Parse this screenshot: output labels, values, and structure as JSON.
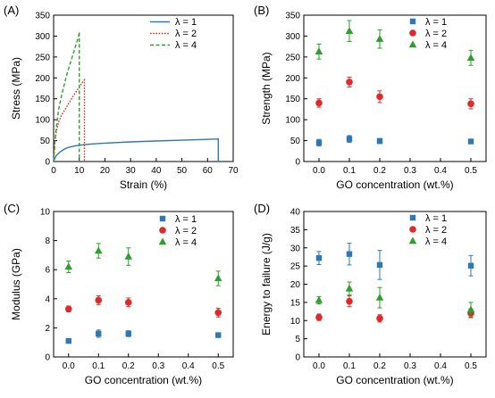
{
  "colors": {
    "l1": "#2e78b6",
    "l2": "#e02a2a",
    "l4": "#2e9e2e",
    "axis": "#000000"
  },
  "chart_data": [
    {
      "panel": "(A)",
      "type": "line",
      "xlabel": "Strain (%)",
      "ylabel": "Stress (MPa)",
      "xlim": [
        0,
        70
      ],
      "ylim": [
        0,
        350
      ],
      "xticks": [
        0,
        10,
        20,
        30,
        40,
        50,
        60,
        70
      ],
      "yticks": [
        0,
        50,
        100,
        150,
        200,
        250,
        300,
        350
      ],
      "legend": "top-right",
      "series": [
        {
          "name": "λ = 1",
          "color": "l1",
          "style": "solid",
          "x": [
            0,
            0.5,
            1,
            2,
            3,
            4,
            5,
            6,
            8,
            10,
            15,
            20,
            30,
            40,
            50,
            60,
            64,
            64.2,
            64.2
          ],
          "y": [
            0,
            8,
            14,
            20,
            25,
            29,
            32,
            34,
            37,
            39,
            42,
            44,
            47,
            49,
            51,
            53,
            54,
            54,
            0
          ]
        },
        {
          "name": "λ = 2",
          "color": "l2",
          "style": "dotted",
          "x": [
            0,
            0.5,
            1,
            2,
            3,
            4,
            6,
            8,
            10,
            11,
            12,
            12,
            12
          ],
          "y": [
            0,
            45,
            70,
            95,
            110,
            120,
            140,
            160,
            178,
            188,
            195,
            195,
            0
          ]
        },
        {
          "name": "λ = 4",
          "color": "l4",
          "style": "dashed",
          "x": [
            0,
            0.5,
            1,
            2,
            3,
            4,
            5,
            6,
            7,
            8,
            9,
            9.8,
            10,
            10
          ],
          "y": [
            0,
            45,
            80,
            125,
            155,
            180,
            205,
            225,
            245,
            265,
            285,
            300,
            310,
            0
          ]
        }
      ]
    },
    {
      "panel": "(B)",
      "type": "scatter",
      "xlabel": "GO concentration (wt.%)",
      "ylabel": "Strength (MPa)",
      "xlim": [
        -0.05,
        0.55
      ],
      "ylim": [
        0,
        350
      ],
      "xticks": [
        0.0,
        0.1,
        0.2,
        0.3,
        0.4,
        0.5
      ],
      "yticks": [
        0,
        50,
        100,
        150,
        200,
        250,
        300,
        350
      ],
      "legend": "top-right",
      "series": [
        {
          "name": "λ = 1",
          "color": "l1",
          "marker": "square",
          "x": [
            0,
            0.1,
            0.2,
            0.5
          ],
          "y": [
            45,
            54,
            49,
            48
          ],
          "err": [
            8,
            8,
            6,
            4
          ]
        },
        {
          "name": "λ = 2",
          "color": "l2",
          "marker": "circle",
          "x": [
            0,
            0.1,
            0.2,
            0.5
          ],
          "y": [
            140,
            190,
            155,
            138
          ],
          "err": [
            10,
            12,
            14,
            12
          ]
        },
        {
          "name": "λ = 4",
          "color": "l4",
          "marker": "triangle",
          "x": [
            0,
            0.1,
            0.2,
            0.5
          ],
          "y": [
            263,
            312,
            293,
            248
          ],
          "err": [
            18,
            25,
            22,
            18
          ]
        }
      ]
    },
    {
      "panel": "(C)",
      "type": "scatter",
      "xlabel": "GO concentration (wt.%)",
      "ylabel": "Modulus (GPa)",
      "xlim": [
        -0.05,
        0.55
      ],
      "ylim": [
        0,
        10
      ],
      "xticks": [
        0.0,
        0.1,
        0.2,
        0.3,
        0.4,
        0.5
      ],
      "yticks": [
        0,
        2,
        4,
        6,
        8,
        10
      ],
      "legend": "top-right",
      "series": [
        {
          "name": "λ = 1",
          "color": "l1",
          "marker": "square",
          "x": [
            0,
            0.1,
            0.2,
            0.5
          ],
          "y": [
            1.1,
            1.6,
            1.6,
            1.5
          ],
          "err": [
            0.15,
            0.25,
            0.2,
            0.15
          ]
        },
        {
          "name": "λ = 2",
          "color": "l2",
          "marker": "circle",
          "x": [
            0,
            0.1,
            0.2,
            0.5
          ],
          "y": [
            3.3,
            3.9,
            3.75,
            3.05
          ],
          "err": [
            0.2,
            0.3,
            0.3,
            0.3
          ]
        },
        {
          "name": "λ = 4",
          "color": "l4",
          "marker": "triangle",
          "x": [
            0,
            0.1,
            0.2,
            0.5
          ],
          "y": [
            6.2,
            7.3,
            6.9,
            5.4
          ],
          "err": [
            0.4,
            0.5,
            0.6,
            0.5
          ]
        }
      ]
    },
    {
      "panel": "(D)",
      "type": "scatter",
      "xlabel": "GO concentration (wt.%)",
      "ylabel": "Energy to failure (J/g)",
      "xlim": [
        -0.05,
        0.55
      ],
      "ylim": [
        0,
        40
      ],
      "xticks": [
        0.0,
        0.1,
        0.2,
        0.3,
        0.4,
        0.5
      ],
      "yticks": [
        0,
        5,
        10,
        15,
        20,
        25,
        30,
        35,
        40
      ],
      "legend": "top-right",
      "series": [
        {
          "name": "λ = 1",
          "color": "l1",
          "marker": "square",
          "x": [
            0,
            0.1,
            0.2,
            0.5
          ],
          "y": [
            27.2,
            28.3,
            25.3,
            25.1
          ],
          "err": [
            1.8,
            3.0,
            4.0,
            2.8
          ]
        },
        {
          "name": "λ = 2",
          "color": "l2",
          "marker": "circle",
          "x": [
            0,
            0.1,
            0.2,
            0.5
          ],
          "y": [
            10.9,
            15.3,
            10.6,
            12.0
          ],
          "err": [
            0.9,
            1.5,
            1.0,
            1.2
          ]
        },
        {
          "name": "λ = 4",
          "color": "l4",
          "marker": "triangle",
          "x": [
            0,
            0.1,
            0.2,
            0.5
          ],
          "y": [
            15.6,
            18.8,
            16.3,
            13.0
          ],
          "err": [
            1.0,
            1.8,
            2.8,
            2.0
          ]
        }
      ]
    }
  ]
}
